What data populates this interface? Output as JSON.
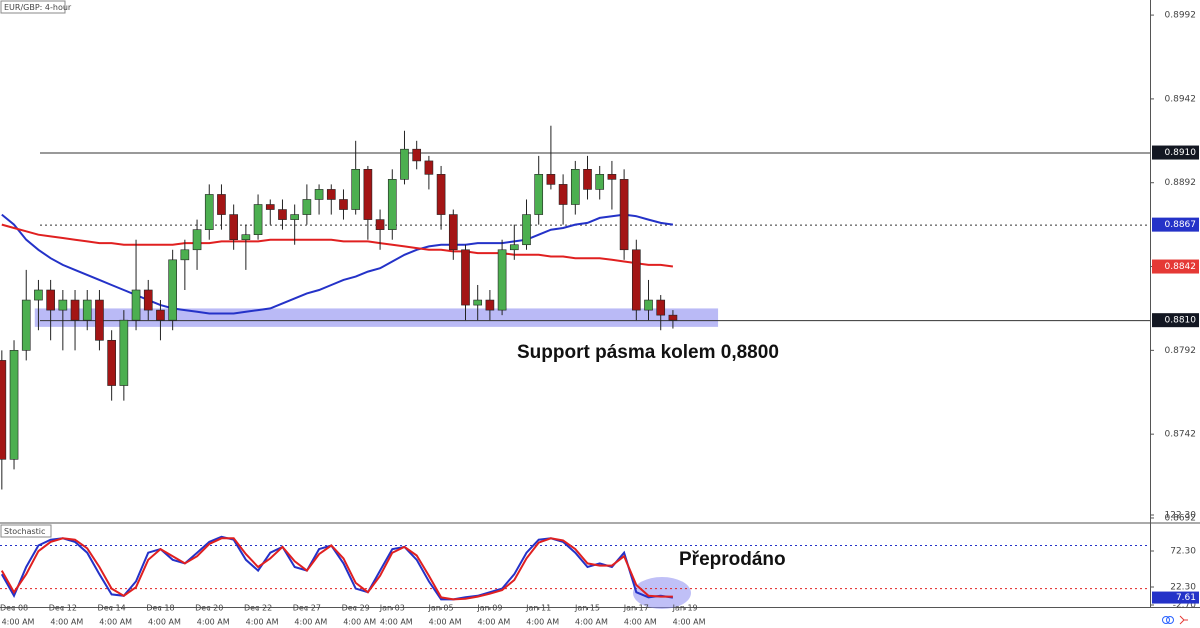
{
  "chart_data": [
    {
      "type": "candlestick",
      "title": "EUR/GBP: 4-hour",
      "xlim": [
        -0.15,
        94.1
      ],
      "ylim": [
        0.86896,
        0.9001
      ],
      "yticks": [
        0.8992,
        0.8942,
        0.8892,
        0.8842,
        0.8792,
        0.8742,
        0.8692
      ],
      "xticks": [
        {
          "value": 1,
          "label": "Dec 08"
        },
        {
          "value": 5,
          "label": "Dec 12"
        },
        {
          "value": 9,
          "label": "Dec 14"
        },
        {
          "value": 13,
          "label": "Dec 18"
        },
        {
          "value": 17,
          "label": "Dec 20"
        },
        {
          "value": 21,
          "label": "Dec 22"
        },
        {
          "value": 25,
          "label": "Dec 27"
        },
        {
          "value": 29,
          "label": "Dec 29"
        },
        {
          "value": 32,
          "label": "Jan 03"
        },
        {
          "value": 36,
          "label": "Jan 05"
        },
        {
          "value": 40,
          "label": "Jan 09"
        },
        {
          "value": 44,
          "label": "Jan 11"
        },
        {
          "value": 48,
          "label": "Jan 15"
        },
        {
          "value": 52,
          "label": "Jan 17"
        },
        {
          "value": 56,
          "label": "Jan 19"
        }
      ],
      "xtick_time": "4:00 AM",
      "up_color": "#4caf50",
      "down_color": "#a31515",
      "open": [
        0.8786,
        0.8727,
        0.8792,
        0.8822,
        0.8828,
        0.8816,
        0.8822,
        0.881,
        0.8822,
        0.8798,
        0.8771,
        0.881,
        0.8828,
        0.8816,
        0.881,
        0.8846,
        0.8852,
        0.8864,
        0.8885,
        0.8873,
        0.8858,
        0.8861,
        0.8879,
        0.8876,
        0.887,
        0.8873,
        0.8882,
        0.8888,
        0.8882,
        0.8876,
        0.89,
        0.887,
        0.8864,
        0.8894,
        0.8912,
        0.8905,
        0.8897,
        0.8873,
        0.8852,
        0.8819,
        0.8822,
        0.8816,
        0.8852,
        0.8855,
        0.8873,
        0.8897,
        0.8891,
        0.8879,
        0.89,
        0.8888,
        0.8897,
        0.8894,
        0.8852,
        0.8816,
        0.8822,
        0.8813
      ],
      "high": [
        0.8792,
        0.8798,
        0.884,
        0.8834,
        0.8834,
        0.8828,
        0.8828,
        0.8828,
        0.8828,
        0.8804,
        0.8816,
        0.8858,
        0.8834,
        0.8822,
        0.8852,
        0.8858,
        0.887,
        0.8891,
        0.8891,
        0.8879,
        0.8867,
        0.8885,
        0.8882,
        0.8882,
        0.8879,
        0.8891,
        0.8891,
        0.8891,
        0.8888,
        0.8917,
        0.8902,
        0.8876,
        0.89,
        0.8923,
        0.8917,
        0.8908,
        0.8902,
        0.8876,
        0.8855,
        0.8831,
        0.8828,
        0.8858,
        0.8867,
        0.8882,
        0.8908,
        0.8926,
        0.8897,
        0.8905,
        0.8908,
        0.8902,
        0.8905,
        0.89,
        0.8858,
        0.8834,
        0.8825,
        0.8816
      ],
      "low": [
        0.8709,
        0.8721,
        0.8786,
        0.8804,
        0.8798,
        0.8792,
        0.8792,
        0.8804,
        0.8792,
        0.8762,
        0.8762,
        0.8804,
        0.881,
        0.8798,
        0.8804,
        0.8828,
        0.884,
        0.8858,
        0.8864,
        0.8852,
        0.884,
        0.8858,
        0.8867,
        0.8864,
        0.8855,
        0.8867,
        0.8873,
        0.8873,
        0.887,
        0.8873,
        0.8858,
        0.8852,
        0.8858,
        0.8891,
        0.89,
        0.8888,
        0.8864,
        0.8846,
        0.881,
        0.881,
        0.881,
        0.8813,
        0.8846,
        0.8852,
        0.8867,
        0.8888,
        0.8867,
        0.8873,
        0.8882,
        0.8882,
        0.8876,
        0.8846,
        0.881,
        0.881,
        0.8804,
        0.8805
      ],
      "close": [
        0.8727,
        0.8792,
        0.8822,
        0.8828,
        0.8816,
        0.8822,
        0.881,
        0.8822,
        0.8798,
        0.8771,
        0.881,
        0.8828,
        0.8816,
        0.881,
        0.8846,
        0.8852,
        0.8864,
        0.8885,
        0.8873,
        0.8858,
        0.8861,
        0.8879,
        0.8876,
        0.887,
        0.8873,
        0.8882,
        0.8888,
        0.8882,
        0.8876,
        0.89,
        0.887,
        0.8864,
        0.8894,
        0.8912,
        0.8905,
        0.8897,
        0.8873,
        0.8852,
        0.8819,
        0.8822,
        0.8816,
        0.8852,
        0.8855,
        0.8873,
        0.8897,
        0.8891,
        0.8879,
        0.89,
        0.8888,
        0.8897,
        0.8894,
        0.8852,
        0.8816,
        0.8822,
        0.8813,
        0.881
      ],
      "series": [
        {
          "color": "#2432c8",
          "values": [
            0.8873,
            0.8867,
            0.8858,
            0.8852,
            0.8847,
            0.8843,
            0.884,
            0.8837,
            0.8834,
            0.8831,
            0.8828,
            0.8825,
            0.8822,
            0.8819,
            0.8817,
            0.8816,
            0.8815,
            0.8814,
            0.8814,
            0.8814,
            0.8815,
            0.8816,
            0.8817,
            0.882,
            0.8823,
            0.8826,
            0.8828,
            0.8831,
            0.8834,
            0.8836,
            0.8839,
            0.8841,
            0.8845,
            0.8849,
            0.8852,
            0.8854,
            0.8855,
            0.8855,
            0.8855,
            0.8856,
            0.8856,
            0.8856,
            0.8857,
            0.8858,
            0.8861,
            0.8864,
            0.8865,
            0.8867,
            0.8868,
            0.8871,
            0.8872,
            0.8873,
            0.8872,
            0.887,
            0.8868,
            0.8867
          ]
        },
        {
          "color": "#e02020",
          "values": [
            0.8867,
            0.8865,
            0.8863,
            0.8861,
            0.886,
            0.8859,
            0.8858,
            0.8857,
            0.8856,
            0.8856,
            0.8855,
            0.8855,
            0.8855,
            0.8855,
            0.8855,
            0.8856,
            0.8856,
            0.8856,
            0.8857,
            0.8857,
            0.8857,
            0.8857,
            0.8858,
            0.8858,
            0.8858,
            0.8858,
            0.8858,
            0.8858,
            0.8857,
            0.8857,
            0.8857,
            0.8856,
            0.8855,
            0.8854,
            0.8853,
            0.8852,
            0.8852,
            0.8851,
            0.8851,
            0.885,
            0.885,
            0.885,
            0.8849,
            0.8849,
            0.8849,
            0.8848,
            0.8848,
            0.8847,
            0.8847,
            0.8847,
            0.8846,
            0.8845,
            0.8844,
            0.8843,
            0.8843,
            0.8842
          ]
        }
      ],
      "levels": [
        {
          "value": 0.891,
          "style": "solid"
        },
        {
          "value": 0.8867,
          "style": "dotted"
        },
        {
          "value": 0.881,
          "style": "solid"
        }
      ],
      "price_labels": [
        {
          "value": 0.891,
          "label": "0.8910",
          "color": "#131722"
        },
        {
          "value": 0.8867,
          "label": "0.8867",
          "color": "#2432c8"
        },
        {
          "value": 0.8842,
          "label": "0.8842",
          "color": "#e53935"
        },
        {
          "value": 0.881,
          "label": "0.8810",
          "color": "#131722"
        }
      ],
      "zone": {
        "xlim": [
          2.7,
          58.7
        ],
        "ylim": [
          0.8806,
          0.8817
        ],
        "color": "#8c8cf0"
      },
      "annotation": "Support pásma kolem 0,8800"
    },
    {
      "type": "line",
      "title": "Stochastic",
      "xlim": [
        -0.15,
        94.1
      ],
      "ylim": [
        -5.5,
        109.8
      ],
      "yticks": [
        {
          "value": 122.3,
          "label": "122.30"
        },
        {
          "value": 72.3,
          "label": "72.30"
        },
        {
          "value": 22.3,
          "label": "22.30"
        },
        {
          "value": -2.7,
          "label": "-2.70"
        }
      ],
      "levels": [
        80,
        20
      ],
      "series": [
        {
          "color": "#2432c8",
          "label_last": true,
          "values": [
            40,
            10,
            50,
            80,
            88,
            90,
            85,
            70,
            40,
            12,
            10,
            30,
            70,
            75,
            60,
            55,
            70,
            85,
            92,
            88,
            60,
            45,
            70,
            78,
            50,
            45,
            75,
            80,
            55,
            20,
            15,
            45,
            75,
            78,
            60,
            30,
            5,
            5,
            8,
            10,
            15,
            20,
            40,
            70,
            88,
            90,
            85,
            70,
            50,
            55,
            50,
            70,
            15,
            8,
            10,
            7.61
          ]
        },
        {
          "color": "#e02020",
          "values": [
            45,
            15,
            40,
            72,
            85,
            90,
            88,
            76,
            50,
            20,
            10,
            22,
            60,
            75,
            65,
            55,
            65,
            82,
            90,
            90,
            68,
            50,
            62,
            78,
            58,
            45,
            68,
            80,
            62,
            28,
            15,
            38,
            70,
            78,
            66,
            38,
            8,
            5,
            6,
            9,
            13,
            18,
            32,
            62,
            84,
            90,
            87,
            75,
            55,
            52,
            52,
            65,
            25,
            10,
            9,
            9
          ]
        }
      ],
      "annotation": "Přeprodáno"
    }
  ]
}
